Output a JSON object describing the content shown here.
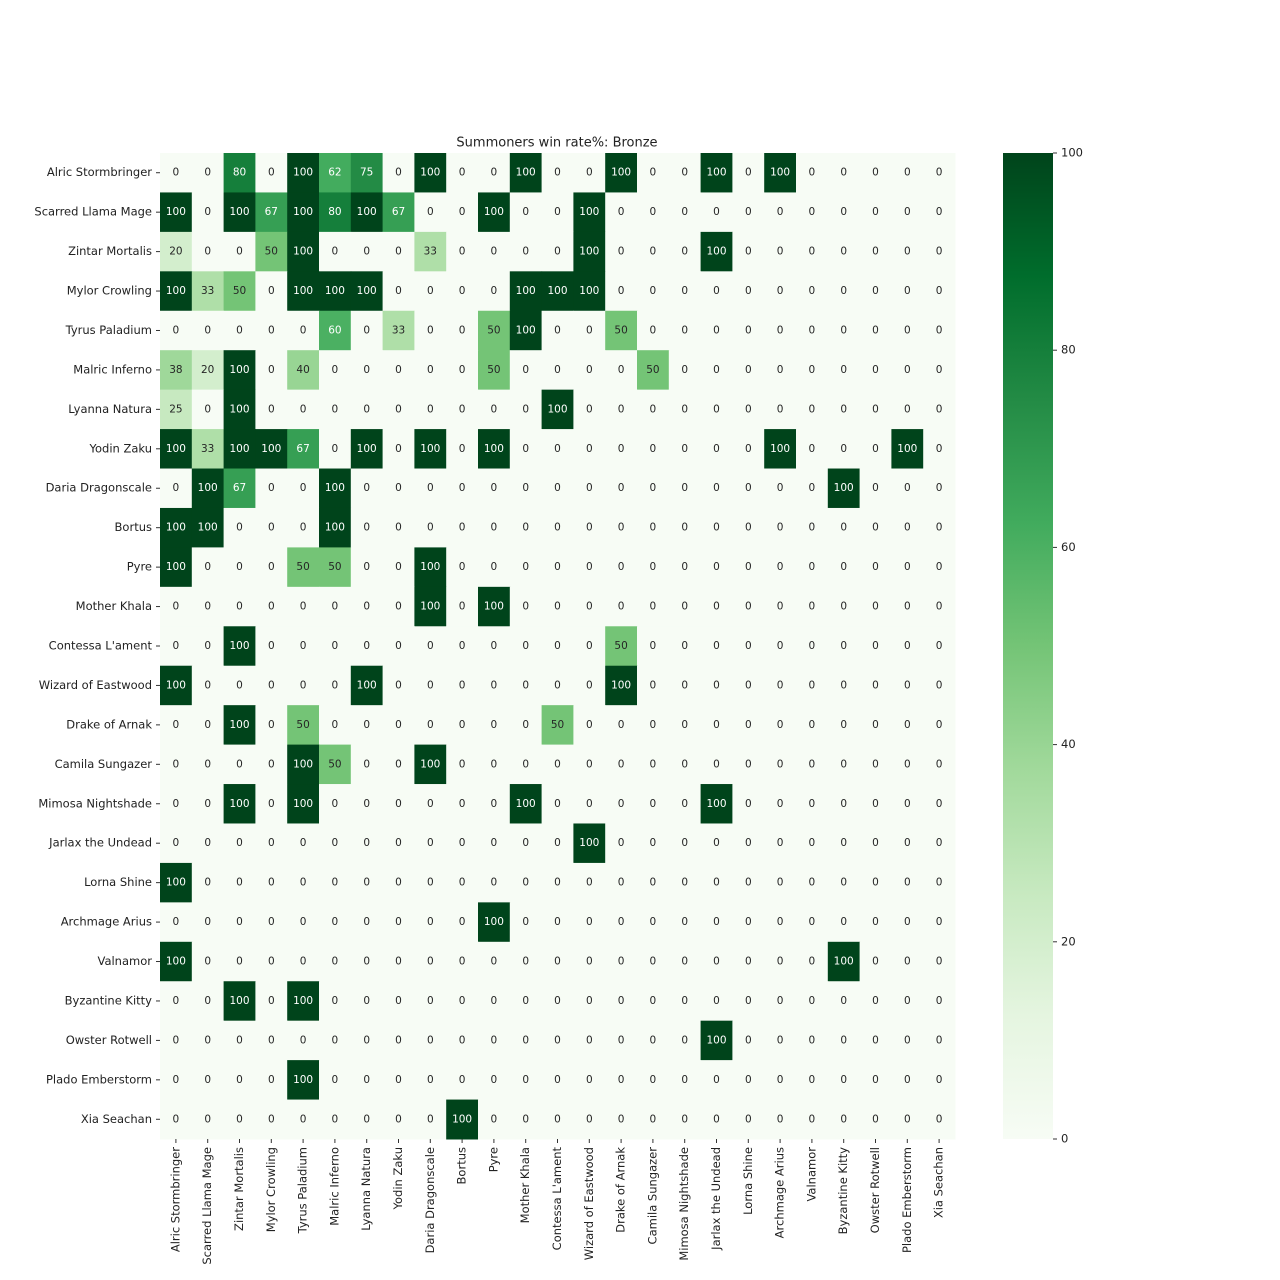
{
  "chart_data": {
    "type": "heatmap",
    "title": "Summoners win rate%: Bronze",
    "colormap": "Greens",
    "x_categories": [
      "Alric Stormbringer",
      "Scarred Llama Mage",
      "Zintar Mortalis",
      "Mylor Crowling",
      "Tyrus Paladium",
      "Malric Inferno",
      "Lyanna Natura",
      "Yodin Zaku",
      "Daria Dragonscale",
      "Bortus",
      "Pyre",
      "Mother Khala",
      "Contessa L'ament",
      "Wizard of Eastwood",
      "Drake of Arnak",
      "Camila Sungazer",
      "Mimosa Nightshade",
      "Jarlax the Undead",
      "Lorna Shine",
      "Archmage Arius",
      "Valnamor",
      "Byzantine Kitty",
      "Owster Rotwell",
      "Plado Emberstorm",
      "Xia Seachan"
    ],
    "y_categories": [
      "Alric Stormbringer",
      "Scarred Llama Mage",
      "Zintar Mortalis",
      "Mylor Crowling",
      "Tyrus Paladium",
      "Malric Inferno",
      "Lyanna Natura",
      "Yodin Zaku",
      "Daria Dragonscale",
      "Bortus",
      "Pyre",
      "Mother Khala",
      "Contessa L'ament",
      "Wizard of Eastwood",
      "Drake of Arnak",
      "Camila Sungazer",
      "Mimosa Nightshade",
      "Jarlax the Undead",
      "Lorna Shine",
      "Archmage Arius",
      "Valnamor",
      "Byzantine Kitty",
      "Owster Rotwell",
      "Plado Emberstorm",
      "Xia Seachan"
    ],
    "values": [
      [
        0,
        0,
        80,
        0,
        100,
        62,
        75,
        0,
        100,
        0,
        0,
        100,
        0,
        0,
        100,
        0,
        0,
        100,
        0,
        100,
        0,
        0,
        0,
        0,
        0
      ],
      [
        100,
        0,
        100,
        67,
        100,
        80,
        100,
        67,
        0,
        0,
        100,
        0,
        0,
        100,
        0,
        0,
        0,
        0,
        0,
        0,
        0,
        0,
        0,
        0,
        0
      ],
      [
        20,
        0,
        0,
        50,
        100,
        0,
        0,
        0,
        33,
        0,
        0,
        0,
        0,
        100,
        0,
        0,
        0,
        100,
        0,
        0,
        0,
        0,
        0,
        0,
        0
      ],
      [
        100,
        33,
        50,
        0,
        100,
        100,
        100,
        0,
        0,
        0,
        0,
        100,
        100,
        100,
        0,
        0,
        0,
        0,
        0,
        0,
        0,
        0,
        0,
        0,
        0
      ],
      [
        0,
        0,
        0,
        0,
        0,
        60,
        0,
        33,
        0,
        0,
        50,
        100,
        0,
        0,
        50,
        0,
        0,
        0,
        0,
        0,
        0,
        0,
        0,
        0,
        0
      ],
      [
        38,
        20,
        100,
        0,
        40,
        0,
        0,
        0,
        0,
        0,
        50,
        0,
        0,
        0,
        0,
        50,
        0,
        0,
        0,
        0,
        0,
        0,
        0,
        0,
        0
      ],
      [
        25,
        0,
        100,
        0,
        0,
        0,
        0,
        0,
        0,
        0,
        0,
        0,
        100,
        0,
        0,
        0,
        0,
        0,
        0,
        0,
        0,
        0,
        0,
        0,
        0
      ],
      [
        100,
        33,
        100,
        100,
        67,
        0,
        100,
        0,
        100,
        0,
        100,
        0,
        0,
        0,
        0,
        0,
        0,
        0,
        0,
        100,
        0,
        0,
        0,
        100,
        0
      ],
      [
        0,
        100,
        67,
        0,
        0,
        100,
        0,
        0,
        0,
        0,
        0,
        0,
        0,
        0,
        0,
        0,
        0,
        0,
        0,
        0,
        0,
        100,
        0,
        0,
        0
      ],
      [
        100,
        100,
        0,
        0,
        0,
        100,
        0,
        0,
        0,
        0,
        0,
        0,
        0,
        0,
        0,
        0,
        0,
        0,
        0,
        0,
        0,
        0,
        0,
        0,
        0
      ],
      [
        100,
        0,
        0,
        0,
        50,
        50,
        0,
        0,
        100,
        0,
        0,
        0,
        0,
        0,
        0,
        0,
        0,
        0,
        0,
        0,
        0,
        0,
        0,
        0,
        0
      ],
      [
        0,
        0,
        0,
        0,
        0,
        0,
        0,
        0,
        100,
        0,
        100,
        0,
        0,
        0,
        0,
        0,
        0,
        0,
        0,
        0,
        0,
        0,
        0,
        0,
        0
      ],
      [
        0,
        0,
        100,
        0,
        0,
        0,
        0,
        0,
        0,
        0,
        0,
        0,
        0,
        0,
        50,
        0,
        0,
        0,
        0,
        0,
        0,
        0,
        0,
        0,
        0
      ],
      [
        100,
        0,
        0,
        0,
        0,
        0,
        100,
        0,
        0,
        0,
        0,
        0,
        0,
        0,
        100,
        0,
        0,
        0,
        0,
        0,
        0,
        0,
        0,
        0,
        0
      ],
      [
        0,
        0,
        100,
        0,
        50,
        0,
        0,
        0,
        0,
        0,
        0,
        0,
        50,
        0,
        0,
        0,
        0,
        0,
        0,
        0,
        0,
        0,
        0,
        0,
        0
      ],
      [
        0,
        0,
        0,
        0,
        100,
        50,
        0,
        0,
        100,
        0,
        0,
        0,
        0,
        0,
        0,
        0,
        0,
        0,
        0,
        0,
        0,
        0,
        0,
        0,
        0
      ],
      [
        0,
        0,
        100,
        0,
        100,
        0,
        0,
        0,
        0,
        0,
        0,
        100,
        0,
        0,
        0,
        0,
        0,
        100,
        0,
        0,
        0,
        0,
        0,
        0,
        0
      ],
      [
        0,
        0,
        0,
        0,
        0,
        0,
        0,
        0,
        0,
        0,
        0,
        0,
        0,
        100,
        0,
        0,
        0,
        0,
        0,
        0,
        0,
        0,
        0,
        0,
        0
      ],
      [
        100,
        0,
        0,
        0,
        0,
        0,
        0,
        0,
        0,
        0,
        0,
        0,
        0,
        0,
        0,
        0,
        0,
        0,
        0,
        0,
        0,
        0,
        0,
        0,
        0
      ],
      [
        0,
        0,
        0,
        0,
        0,
        0,
        0,
        0,
        0,
        0,
        100,
        0,
        0,
        0,
        0,
        0,
        0,
        0,
        0,
        0,
        0,
        0,
        0,
        0,
        0
      ],
      [
        100,
        0,
        0,
        0,
        0,
        0,
        0,
        0,
        0,
        0,
        0,
        0,
        0,
        0,
        0,
        0,
        0,
        0,
        0,
        0,
        0,
        100,
        0,
        0,
        0
      ],
      [
        0,
        0,
        100,
        0,
        100,
        0,
        0,
        0,
        0,
        0,
        0,
        0,
        0,
        0,
        0,
        0,
        0,
        0,
        0,
        0,
        0,
        0,
        0,
        0,
        0
      ],
      [
        0,
        0,
        0,
        0,
        0,
        0,
        0,
        0,
        0,
        0,
        0,
        0,
        0,
        0,
        0,
        0,
        0,
        100,
        0,
        0,
        0,
        0,
        0,
        0,
        0
      ],
      [
        0,
        0,
        0,
        0,
        100,
        0,
        0,
        0,
        0,
        0,
        0,
        0,
        0,
        0,
        0,
        0,
        0,
        0,
        0,
        0,
        0,
        0,
        0,
        0,
        0
      ],
      [
        0,
        0,
        0,
        0,
        0,
        0,
        0,
        0,
        0,
        100,
        0,
        0,
        0,
        0,
        0,
        0,
        0,
        0,
        0,
        0,
        0,
        0,
        0,
        0,
        0
      ]
    ],
    "clim": [
      0,
      100
    ],
    "cticks": [
      0,
      20,
      40,
      60,
      80,
      100
    ]
  }
}
